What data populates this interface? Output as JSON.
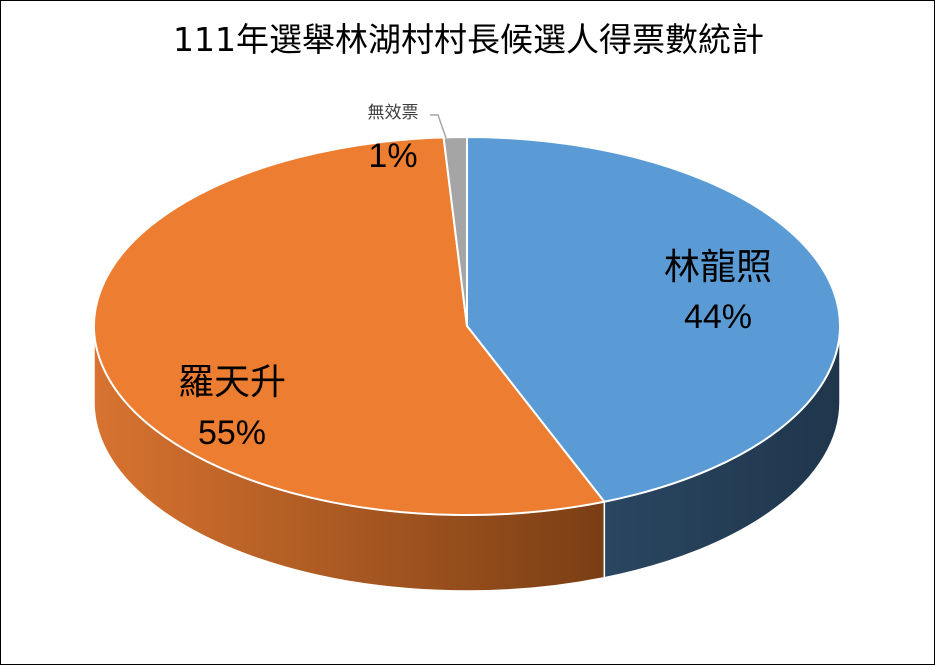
{
  "chart_data": {
    "type": "pie",
    "title": "111年選舉林湖村村長候選人得票數統計",
    "slices": [
      {
        "label": "林龍照",
        "value": 44,
        "value_label": "44%",
        "color": "#5b9bd5",
        "side_color": "#253d56"
      },
      {
        "label": "羅天升",
        "value": 55,
        "value_label": "55%",
        "color": "#ed7d31",
        "side_color": "#c0652a"
      },
      {
        "label": "無效票",
        "value": 1,
        "value_label": "1%",
        "color": "#a5a5a5",
        "side_color": "#7f7f7f"
      }
    ],
    "style": "3d-tilted",
    "legend": "none"
  }
}
